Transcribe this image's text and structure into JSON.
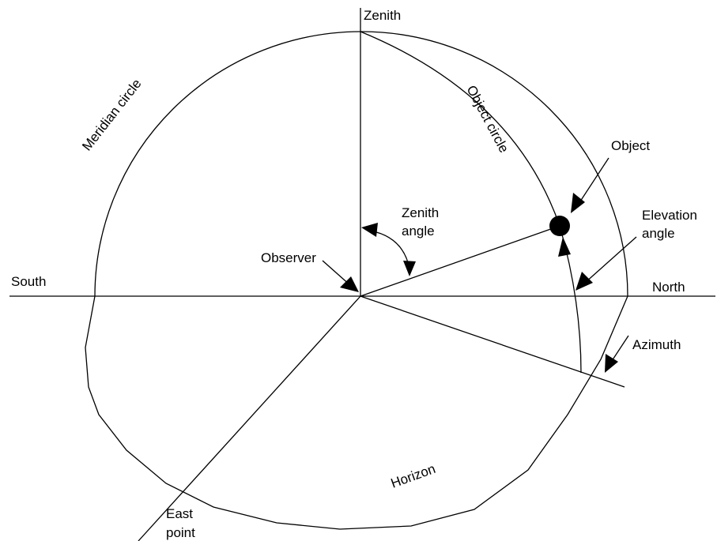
{
  "labels": {
    "zenith": "Zenith",
    "meridian_circle": "Meridian circle",
    "object_circle": "Object circle",
    "object": "Object",
    "zenith_angle": [
      "Zenith",
      "angle"
    ],
    "elevation_angle": [
      "Elevation",
      "angle"
    ],
    "observer": "Observer",
    "south": "South",
    "north": "North",
    "azimuth": "Azimuth",
    "horizon": "Horizon",
    "east_point": [
      "East",
      "point"
    ]
  }
}
